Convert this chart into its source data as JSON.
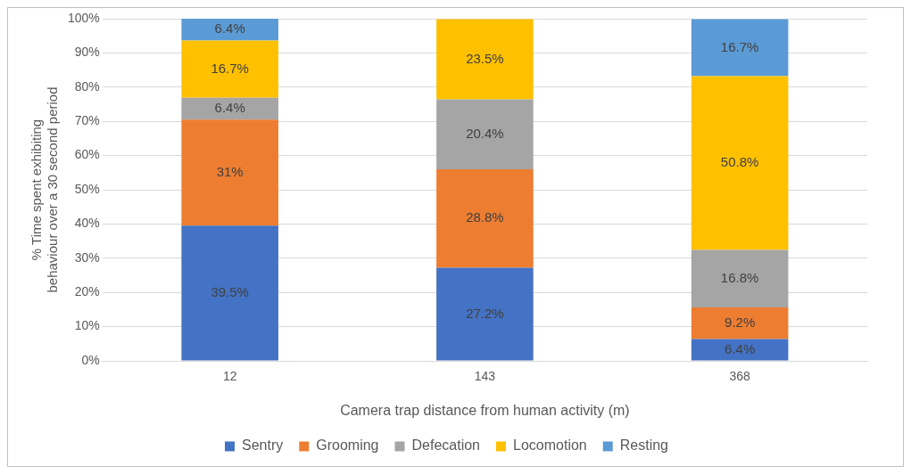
{
  "chart_data": {
    "type": "bar",
    "stacked": true,
    "xlabel": "Camera trap distance from human activity (m)",
    "ylabel": "% Time spent exhibiting behaviour over a 30 second period",
    "categories": [
      "12",
      "143",
      "368"
    ],
    "series": [
      {
        "name": "Sentry",
        "color": "#4472c4",
        "values": [
          39.5,
          27.2,
          6.4
        ],
        "value_labels": [
          "39.5%",
          "27.2%",
          "6.4%"
        ]
      },
      {
        "name": "Grooming",
        "color": "#ed7d31",
        "values": [
          31,
          28.8,
          9.2
        ],
        "value_labels": [
          "31%",
          "28.8%",
          "9.2%"
        ]
      },
      {
        "name": "Defecation",
        "color": "#a5a5a5",
        "values": [
          6.4,
          20.4,
          16.8
        ],
        "value_labels": [
          "6.4%",
          "20.4%",
          "16.8%"
        ]
      },
      {
        "name": "Locomotion",
        "color": "#ffc000",
        "values": [
          16.7,
          23.5,
          50.8
        ],
        "value_labels": [
          "16.7%",
          "23.5%",
          "50.8%"
        ]
      },
      {
        "name": "Resting",
        "color": "#5b9bd5",
        "values": [
          6.4,
          null,
          16.7
        ],
        "value_labels": [
          "6.4%",
          null,
          "16.7%"
        ]
      }
    ],
    "ylim": [
      0,
      100
    ],
    "yticks": [
      {
        "value": 0,
        "label": "0%"
      },
      {
        "value": 10,
        "label": "10%"
      },
      {
        "value": 20,
        "label": "20%"
      },
      {
        "value": 30,
        "label": "30%"
      },
      {
        "value": 40,
        "label": "40%"
      },
      {
        "value": 50,
        "label": "50%"
      },
      {
        "value": 60,
        "label": "60%"
      },
      {
        "value": 70,
        "label": "70%"
      },
      {
        "value": 80,
        "label": "80%"
      },
      {
        "value": 90,
        "label": "90%"
      },
      {
        "value": 100,
        "label": "100%"
      }
    ],
    "grid": "y",
    "legend": "bottom"
  }
}
